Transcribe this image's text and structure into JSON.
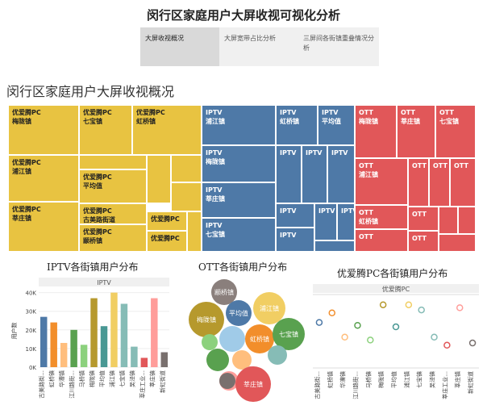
{
  "page_title": "闵行区家庭用户大屏收视可视化分析",
  "tabs": [
    {
      "label": "大屏收视概况"
    },
    {
      "label": "大屏宽带占比分析"
    },
    {
      "label": "三屏间各街镇重叠情况分析"
    }
  ],
  "treemap_title": "闵行区家庭用户大屏收视概况",
  "treemap": {
    "yellow": [
      "优爱腾PC\n梅陇镇",
      "优爱腾PC\n七宝镇",
      "优爱腾PC\n虹桥镇",
      "优爱腾PC\n浦江镇",
      "优爱腾PC\n莘庄镇",
      "优爱腾PC\n平均值",
      "优爱腾PC\n古美路街道",
      "优爱腾PC\n颛桥镇",
      "优爱腾PC",
      "优爱腾PC"
    ],
    "blue": [
      "IPTV\n浦江镇",
      "IPTV\n虹桥镇",
      "IPTV\n平均值",
      "IPTV\n梅陇镇",
      "IPTV",
      "IPTV",
      "IPTV",
      "IPTV\n莘庄镇",
      "IPTV",
      "IPTV",
      "IPTV\n七宝镇",
      "IPTV",
      "IPTV"
    ],
    "red": [
      "OTT\n梅陇镇",
      "OTT\n莘庄镇",
      "OTT\n七宝镇",
      "OTT\n浦江镇",
      "OTT",
      "OTT",
      "OTT",
      "OTT\n虹桥镇",
      "OTT",
      "OTT",
      "OTT"
    ]
  },
  "iptv_chart": {
    "title": "IPTV各街镇用户分布",
    "header": "IPTV",
    "ylabel": "用户数",
    "yticks": [
      "0K",
      "10K",
      "20K",
      "30K",
      "40K"
    ]
  },
  "ott_chart": {
    "title": "OTT各街镇用户分布",
    "bubbles": [
      "颛桥镇",
      "梅陇镇",
      "平均值",
      "浦江镇",
      "虹桥镇",
      "七宝镇",
      "莘庄镇"
    ]
  },
  "pc_chart": {
    "title": "优爱腾PC各街镇用户分布",
    "header": "优爱腾PC"
  },
  "chart_data": [
    {
      "type": "bar",
      "title": "IPTV各街镇用户分布",
      "ylabel": "用户数",
      "ylim": [
        0,
        42000
      ],
      "categories": [
        "古美路街...",
        "虹桥镇",
        "华漕镇",
        "江川路街...",
        "马桥镇",
        "梅陇镇",
        "平均值",
        "浦江镇",
        "七宝镇",
        "吴泾镇",
        "莘庄工业...",
        "莘庄镇",
        "新虹街道"
      ],
      "values": [
        27000,
        24000,
        13000,
        20000,
        12000,
        37000,
        22000,
        40000,
        34000,
        11000,
        5000,
        37000,
        8000
      ],
      "colors": [
        "#4e79a7",
        "#f28e2b",
        "#ffbe7d",
        "#59a14f",
        "#8cd17d",
        "#b6992d",
        "#499894",
        "#f1ce63",
        "#86bcb6",
        "#86bcb6",
        "#e15759",
        "#ff9d9a",
        "#79706e"
      ]
    },
    {
      "type": "scatter",
      "title": "优爱腾PC各街镇用户分布",
      "categories": [
        "古美路街...",
        "虹桥镇",
        "华漕镇",
        "江川路街...",
        "马桥镇",
        "梅陇镇",
        "平均值",
        "浦江镇",
        "七宝镇",
        "吴泾镇",
        "莘庄工业...",
        "莘庄镇",
        "新虹街道"
      ],
      "values": [
        0.62,
        0.75,
        0.42,
        0.58,
        0.38,
        0.86,
        0.56,
        0.86,
        0.79,
        0.42,
        0.31,
        0.82,
        0.34
      ],
      "colors": [
        "#4e79a7",
        "#f28e2b",
        "#ffbe7d",
        "#59a14f",
        "#8cd17d",
        "#b6992d",
        "#499894",
        "#f1ce63",
        "#86bcb6",
        "#86bcb6",
        "#e15759",
        "#ff9d9a",
        "#79706e"
      ]
    }
  ]
}
